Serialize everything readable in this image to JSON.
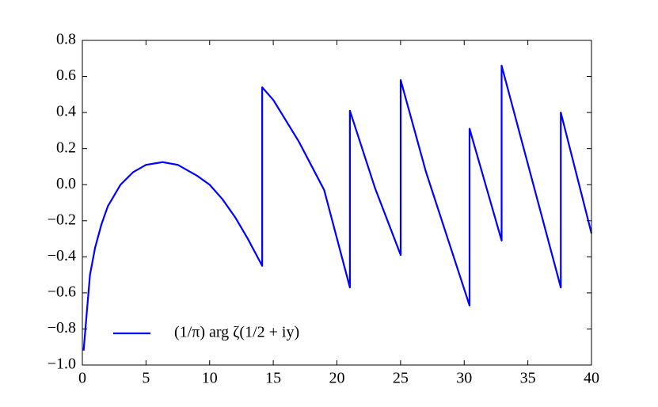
{
  "chart_data": {
    "type": "line",
    "x": [
      0.1,
      0.3,
      0.6,
      1,
      1.5,
      2,
      3,
      4,
      5,
      6.3,
      7.5,
      9,
      10,
      11,
      12,
      13,
      14.13,
      14.13,
      15,
      17,
      19,
      21.02,
      21.02,
      23,
      25.01,
      25.01,
      27,
      30.42,
      30.42,
      32.94,
      32.94,
      37.59,
      37.59,
      40
    ],
    "series": [
      {
        "name": "(1/π) arg ζ(1/2 + iy)",
        "color": "#0000ff",
        "values": [
          -0.92,
          -0.75,
          -0.5,
          -0.35,
          -0.22,
          -0.12,
          0.0,
          0.07,
          0.11,
          0.125,
          0.11,
          0.05,
          0.0,
          -0.08,
          -0.18,
          -0.3,
          -0.45,
          0.54,
          0.47,
          0.24,
          -0.03,
          -0.57,
          0.41,
          -0.02,
          -0.39,
          0.58,
          0.07,
          -0.67,
          0.31,
          -0.31,
          0.66,
          -0.57,
          0.4,
          -0.27
        ]
      }
    ],
    "xlim": [
      0,
      40
    ],
    "xticks": [
      0,
      5,
      10,
      15,
      20,
      25,
      30,
      35,
      40
    ],
    "ylim": [
      -1.0,
      0.8
    ],
    "yticks": [
      {
        "value": -1.0,
        "label": "−1.0"
      },
      {
        "value": -0.8,
        "label": "−0.8"
      },
      {
        "value": -0.6,
        "label": "−0.6"
      },
      {
        "value": -0.4,
        "label": "−0.4"
      },
      {
        "value": -0.2,
        "label": "−0.2"
      },
      {
        "value": 0,
        "label": "0.0"
      },
      0.2,
      0.4,
      0.6,
      0.8
    ],
    "legend": "lower left",
    "grid": false
  }
}
